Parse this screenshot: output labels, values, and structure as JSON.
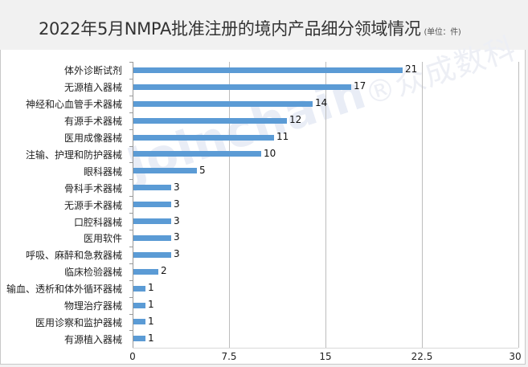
{
  "header": {
    "title": "2022年5月NMPA批准注册的境内产品细分领域情况",
    "unit": "(单位：件)"
  },
  "watermark": {
    "brand": "Joinchain",
    "brand_cn": "®众成数科"
  },
  "colors": {
    "bar": "#5b9bd5",
    "background": "#f2f2f2",
    "plot_background": "#ffffff",
    "gridline": "#bdbdbd"
  },
  "chart_data": {
    "type": "bar",
    "orientation": "horizontal",
    "title": "2022年5月NMPA批准注册的境内产品细分领域情况",
    "subtitle": "(单位：件)",
    "xlabel": "",
    "ylabel": "",
    "xlim": [
      0,
      30
    ],
    "x_ticks": [
      "0",
      "7.5",
      "15",
      "22.5",
      "30"
    ],
    "grid": true,
    "legend": "none",
    "categories": [
      "体外诊断试剂",
      "无源植入器械",
      "神经和心血管手术器械",
      "有源手术器械",
      "医用成像器械",
      "注输、护理和防护器械",
      "眼科器械",
      "骨科手术器械",
      "无源手术器械",
      "口腔科器械",
      "医用软件",
      "呼吸、麻醉和急救器械",
      "临床检验器械",
      "输血、透析和体外循环器械",
      "物理治疗器械",
      "医用诊察和监护器械",
      "有源植入器械"
    ],
    "values": [
      21,
      17,
      14,
      12,
      11,
      10,
      5,
      3,
      3,
      3,
      3,
      3,
      2,
      1,
      1,
      1,
      1
    ],
    "value_labels": [
      "21",
      "17",
      "14",
      "12",
      "11",
      "10",
      "5",
      "3",
      "3",
      "3",
      "3",
      "3",
      "2",
      "1",
      "1",
      "1",
      "1"
    ]
  }
}
